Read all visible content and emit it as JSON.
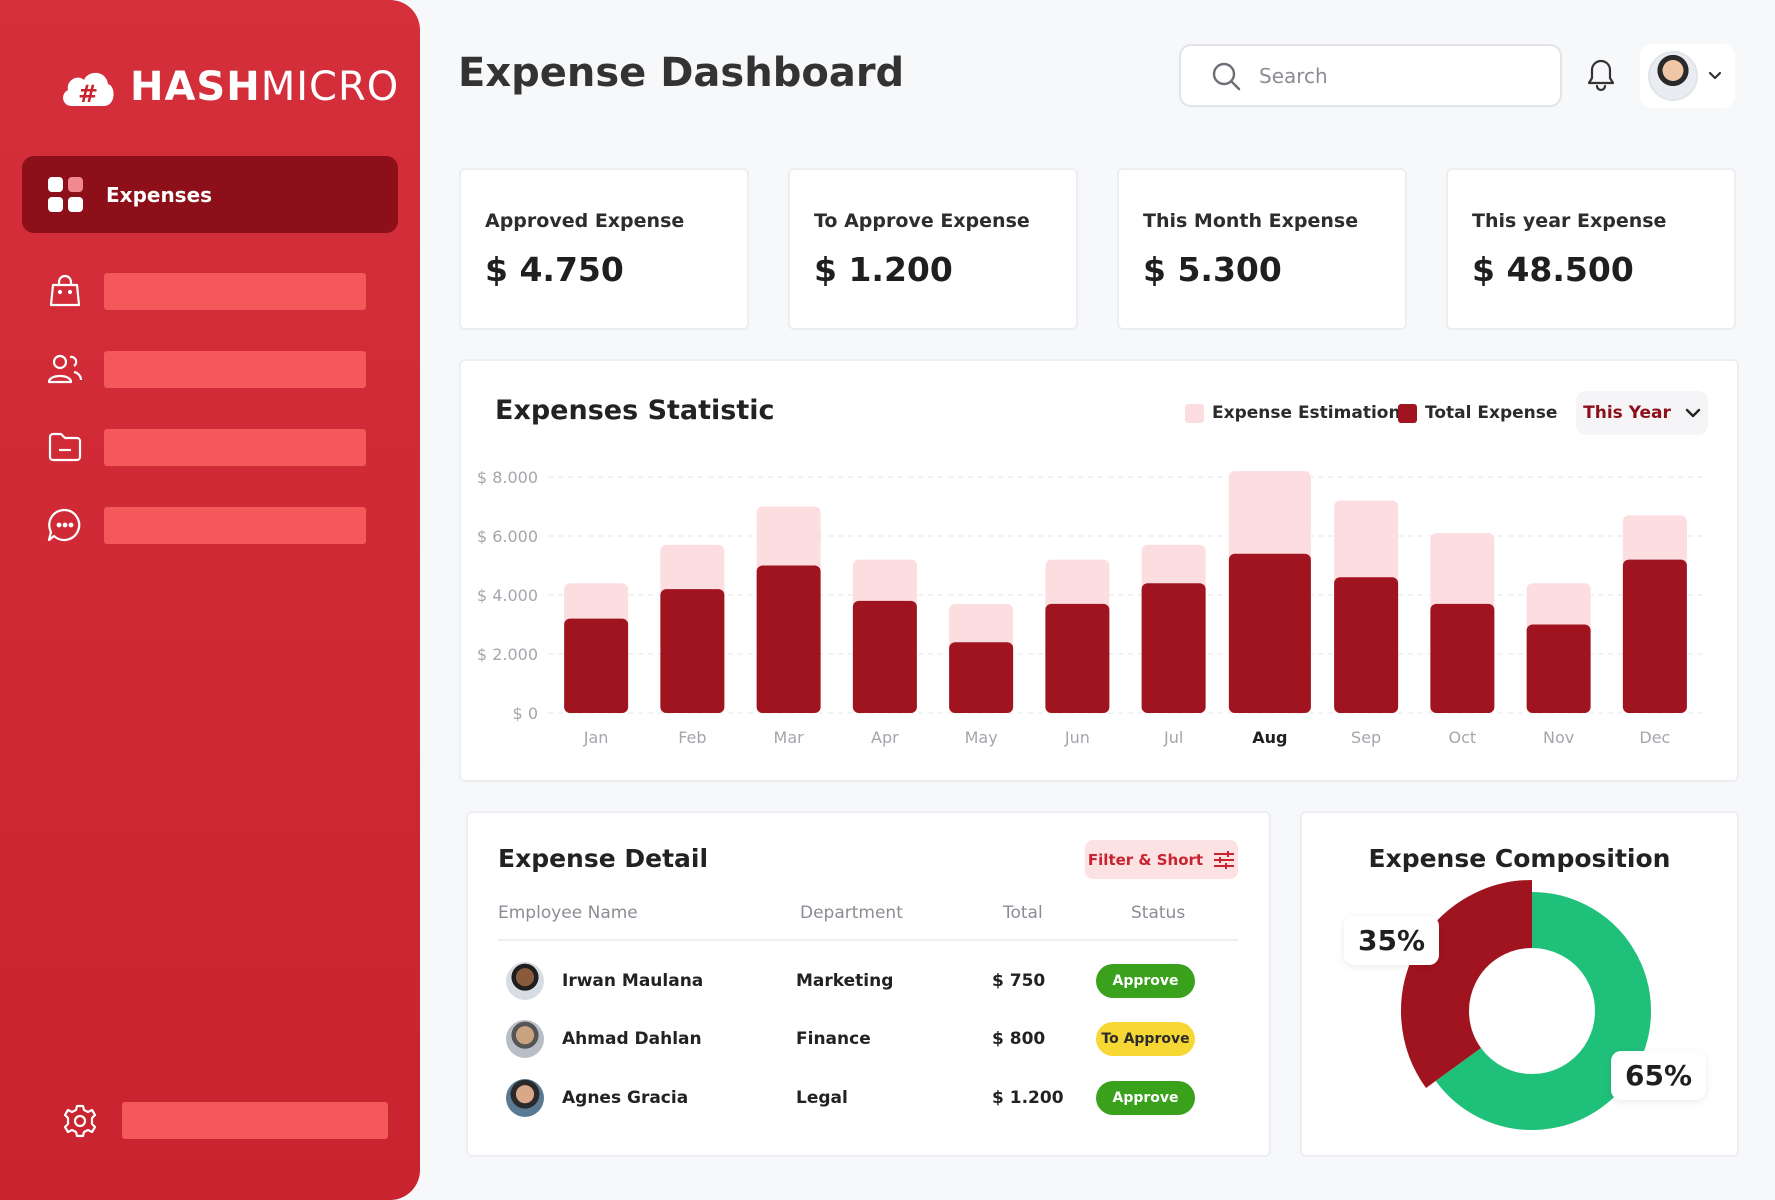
{
  "brand": {
    "name_bold": "HASH",
    "name_light": "MICRO"
  },
  "sidebar": {
    "active": {
      "label": "Expenses"
    },
    "items": [
      {
        "icon": "shopping-bag-icon"
      },
      {
        "icon": "users-icon"
      },
      {
        "icon": "folder-icon"
      },
      {
        "icon": "chat-icon"
      }
    ],
    "settings_icon": "gear-icon"
  },
  "header": {
    "title": "Expense Dashboard",
    "search_placeholder": "Search"
  },
  "kpis": [
    {
      "title": "Approved Expense",
      "value": "$ 4.750"
    },
    {
      "title": "To Approve Expense",
      "value": "$ 1.200"
    },
    {
      "title": "This Month Expense",
      "value": "$ 5.300"
    },
    {
      "title": "This year Expense",
      "value": "$ 48.500"
    }
  ],
  "statistic": {
    "title": "Expenses Statistic",
    "legend": {
      "estimation": "Expense Estimation",
      "total": "Total Expense"
    },
    "period": "This Year",
    "colors": {
      "estimation": "#fcdde0",
      "total": "#a0141f"
    },
    "highlight_month": "Aug"
  },
  "chart_data": {
    "type": "bar",
    "categories": [
      "Jan",
      "Feb",
      "Mar",
      "Apr",
      "May",
      "Jun",
      "Jul",
      "Aug",
      "Sep",
      "Oct",
      "Nov",
      "Dec"
    ],
    "y_tick_labels": [
      "$ 0",
      "$ 2.000",
      "$ 4.000",
      "$ 6.000",
      "$ 8.000"
    ],
    "ylim": [
      0,
      8000
    ],
    "series": [
      {
        "name": "Expense Estimation",
        "values": [
          4400,
          5700,
          7000,
          5200,
          3700,
          5200,
          5700,
          8200,
          7200,
          6100,
          4400,
          6700
        ]
      },
      {
        "name": "Total Expense",
        "values": [
          3200,
          4200,
          5000,
          3800,
          2400,
          3700,
          4400,
          5400,
          4600,
          3700,
          3000,
          5200
        ]
      }
    ]
  },
  "detail": {
    "title": "Expense Detail",
    "filter_label": "Filter & Short",
    "columns": [
      "Employee Name",
      "Department",
      "Total",
      "Status"
    ],
    "rows": [
      {
        "name": "Irwan Maulana",
        "department": "Marketing",
        "total": "$ 750",
        "status": "Approve"
      },
      {
        "name": "Ahmad Dahlan",
        "department": "Finance",
        "total": "$ 800",
        "status": "To Approve"
      },
      {
        "name": "Agnes Gracia",
        "department": "Legal",
        "total": "$ 1.200",
        "status": "Approve"
      }
    ],
    "status_colors": {
      "Approve": "#3aa11c",
      "To Approve": "#f7d733"
    }
  },
  "composition": {
    "title": "Expense Composition",
    "slices": [
      {
        "label": "35%",
        "value": 35,
        "color": "#a0141f"
      },
      {
        "label": "65%",
        "value": 65,
        "color": "#1fc07a"
      }
    ]
  }
}
